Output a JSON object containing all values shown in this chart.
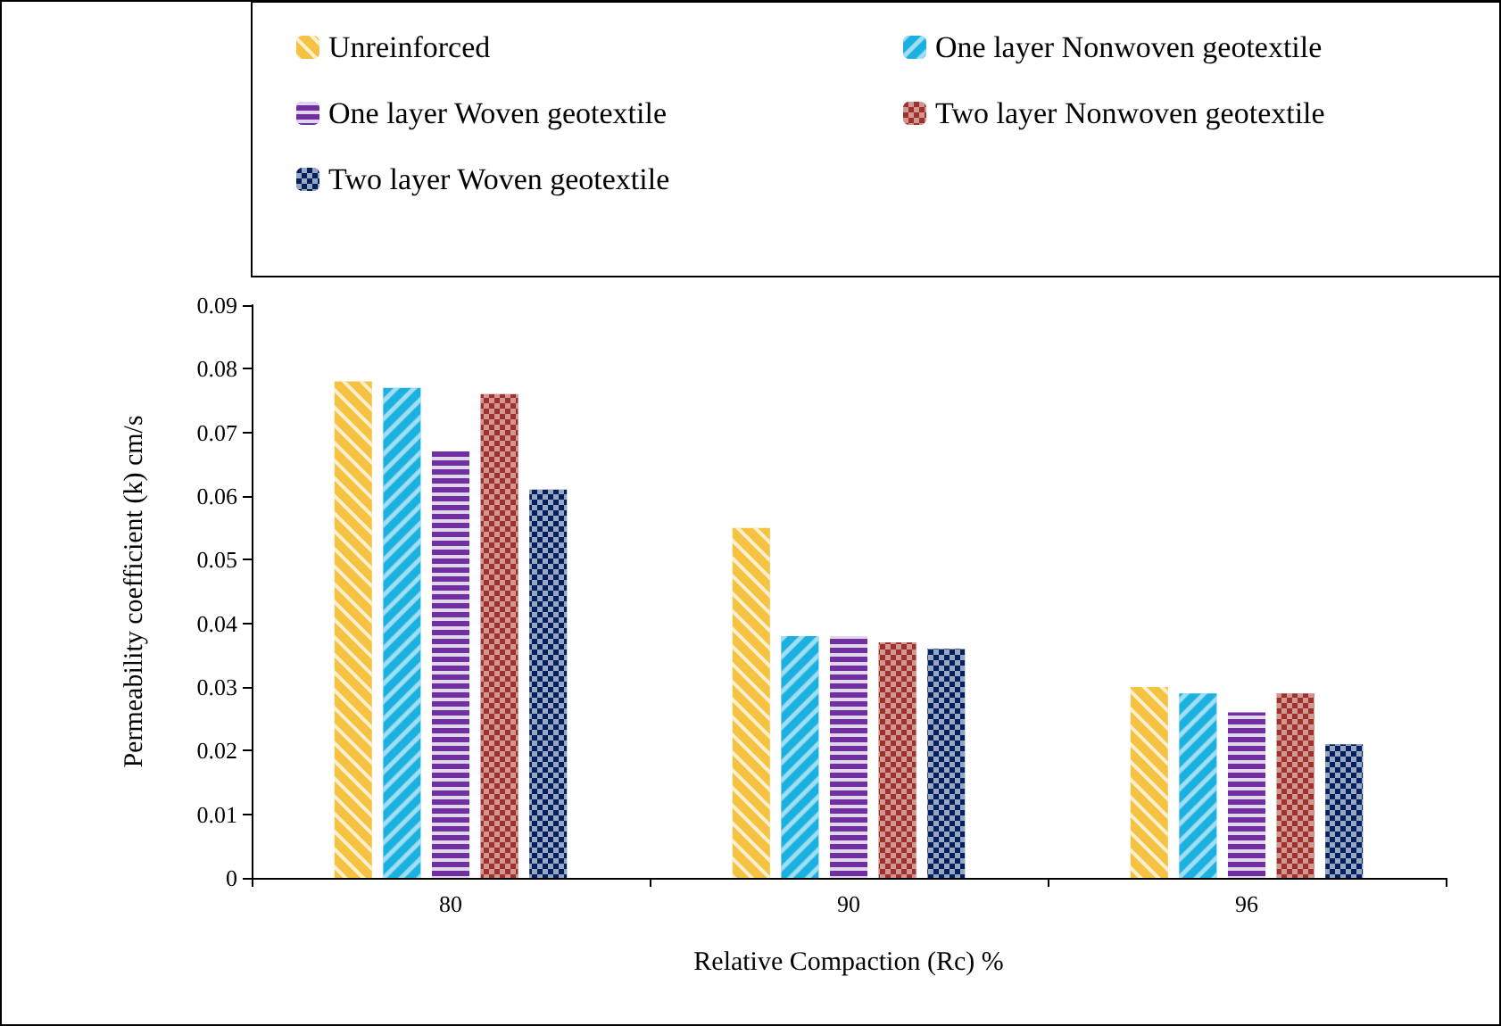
{
  "chart_data": {
    "type": "bar",
    "xlabel": "Relative Compaction (Rc) %",
    "ylabel": "Permeability coefficient (k) cm/s",
    "categories": [
      "80",
      "90",
      "96"
    ],
    "series": [
      {
        "name": "Unreinforced",
        "color": "#f5c242",
        "values": [
          0.078,
          0.055,
          0.03
        ]
      },
      {
        "name": "One layer Nonwoven geotextile",
        "color": "#1ab0e0",
        "values": [
          0.077,
          0.038,
          0.029
        ]
      },
      {
        "name": "One layer Woven geotextile",
        "color": "#7030a0",
        "values": [
          0.067,
          0.038,
          0.026
        ]
      },
      {
        "name": "Two layer Nonwoven geotextile",
        "color": "#a0302a",
        "values": [
          0.076,
          0.037,
          0.029
        ]
      },
      {
        "name": "Two layer Woven geotextile",
        "color": "#002060",
        "values": [
          0.061,
          0.036,
          0.021
        ]
      }
    ],
    "ylim": [
      0,
      0.09
    ],
    "yticks": [
      0,
      0.01,
      0.02,
      0.03,
      0.04,
      0.05,
      0.06,
      0.07,
      0.08,
      0.09
    ],
    "grid": false,
    "legend": "top"
  }
}
